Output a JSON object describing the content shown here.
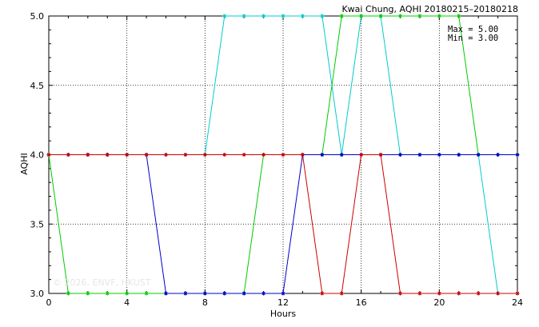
{
  "chart_data": {
    "type": "line",
    "title": "Kwai Chung, AQHI 20180215–20180218",
    "xlabel": "Hours",
    "ylabel": "AQHI",
    "xlim": [
      0,
      24
    ],
    "ylim": [
      3.0,
      5.0
    ],
    "x_ticks": [
      0,
      4,
      8,
      12,
      16,
      20,
      24
    ],
    "y_ticks": [
      "3.0",
      "3.5",
      "4.0",
      "4.5",
      "5.0"
    ],
    "grid": true,
    "legend": "none",
    "stats": [
      "Max = 5.00",
      "Min = 3.00"
    ],
    "watermark": "© 2026, ENVF, HKUST",
    "x": [
      0,
      1,
      2,
      3,
      4,
      5,
      6,
      7,
      8,
      9,
      10,
      11,
      12,
      13,
      14,
      15,
      16,
      17,
      18,
      19,
      20,
      21,
      22,
      23,
      24
    ],
    "series": [
      {
        "color": "#00cccc",
        "values": [
          4,
          4,
          4,
          4,
          4,
          4,
          4,
          4,
          4,
          5,
          5,
          5,
          5,
          5,
          5,
          4,
          5,
          5,
          4,
          4,
          4,
          4,
          4,
          3,
          3
        ]
      },
      {
        "color": "#00cc00",
        "values": [
          4,
          3,
          3,
          3,
          3,
          3,
          3,
          3,
          3,
          3,
          3,
          4,
          4,
          4,
          4,
          5,
          5,
          5,
          5,
          5,
          5,
          5,
          4,
          4,
          4
        ]
      },
      {
        "color": "#0000cc",
        "values": [
          4,
          4,
          4,
          4,
          4,
          4,
          3,
          3,
          3,
          3,
          3,
          3,
          3,
          4,
          4,
          4,
          4,
          4,
          4,
          4,
          4,
          4,
          4,
          4,
          4
        ]
      },
      {
        "color": "#cc0000",
        "values": [
          4,
          4,
          4,
          4,
          4,
          4,
          4,
          4,
          4,
          4,
          4,
          4,
          4,
          4,
          3,
          3,
          4,
          4,
          3,
          3,
          3,
          3,
          3,
          3,
          3
        ]
      }
    ]
  }
}
